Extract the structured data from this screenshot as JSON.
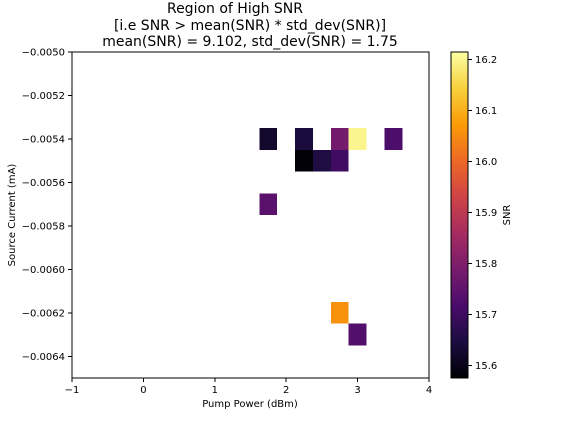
{
  "chart_data": {
    "type": "heatmap",
    "title_lines": [
      "Region of High SNR",
      "[i.e SNR > mean(SNR) * std_dev(SNR)]",
      "mean(SNR) = 9.102, std_dev(SNR) = 1.75"
    ],
    "xlabel": "Pump Power (dBm)",
    "ylabel": "Source Current (mA)",
    "colorbar_label": "SNR",
    "xlim": [
      -1,
      4
    ],
    "ylim": [
      -0.0065,
      -0.005
    ],
    "xticks": [
      -1,
      0,
      1,
      2,
      3,
      4
    ],
    "xtick_labels": [
      "−1",
      "0",
      "1",
      "2",
      "3",
      "4"
    ],
    "yticks": [
      -0.005,
      -0.0052,
      -0.0054,
      -0.0056,
      -0.0058,
      -0.006,
      -0.0062,
      -0.0064
    ],
    "ytick_labels": [
      "−0.0050",
      "−0.0052",
      "−0.0054",
      "−0.0056",
      "−0.0058",
      "−0.0060",
      "−0.0062",
      "−0.0064"
    ],
    "cell_width": 0.25,
    "cell_height": 0.0001,
    "cells": [
      {
        "x": 1.75,
        "y": -0.0054,
        "value": 15.62
      },
      {
        "x": 2.25,
        "y": -0.0054,
        "value": 15.64
      },
      {
        "x": 2.75,
        "y": -0.0054,
        "value": 15.78
      },
      {
        "x": 3.0,
        "y": -0.0054,
        "value": 16.2
      },
      {
        "x": 3.5,
        "y": -0.0054,
        "value": 15.72
      },
      {
        "x": 2.25,
        "y": -0.0055,
        "value": 15.58
      },
      {
        "x": 2.5,
        "y": -0.0055,
        "value": 15.65
      },
      {
        "x": 2.75,
        "y": -0.0055,
        "value": 15.7
      },
      {
        "x": 1.75,
        "y": -0.0057,
        "value": 15.74
      },
      {
        "x": 2.75,
        "y": -0.0062,
        "value": 16.06
      },
      {
        "x": 3.0,
        "y": -0.0063,
        "value": 15.73
      }
    ],
    "colorbar": {
      "min": 15.575,
      "max": 16.215,
      "ticks": [
        15.6,
        15.7,
        15.8,
        15.9,
        16.0,
        16.1,
        16.2
      ],
      "tick_labels": [
        "15.6",
        "15.7",
        "15.8",
        "15.9",
        "16.0",
        "16.1",
        "16.2"
      ],
      "colormap": "inferno",
      "colormap_stops": [
        "#000004",
        "#1b0c41",
        "#4a0c6b",
        "#781c6d",
        "#a52c60",
        "#cf4446",
        "#ed6925",
        "#fb9b06",
        "#f7d13d",
        "#fcffa4"
      ]
    },
    "grid": false
  }
}
